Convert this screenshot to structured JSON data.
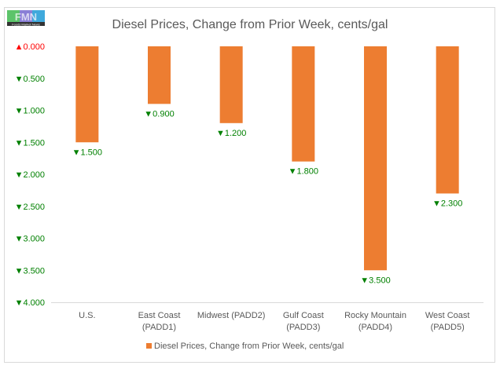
{
  "logo": {
    "text": "FMN",
    "subtext": "Foods Market News"
  },
  "chart_data": {
    "type": "bar",
    "title": "Diesel Prices, Change from Prior Week, cents/gal",
    "categories": [
      [
        "U.S."
      ],
      [
        "East Coast",
        "(PADD1)"
      ],
      [
        "Midwest (PADD2)"
      ],
      [
        "Gulf Coast",
        "(PADD3)"
      ],
      [
        "Rocky Mountain",
        "(PADD4)"
      ],
      [
        "West Coast",
        "(PADD5)"
      ]
    ],
    "values": [
      -1.5,
      -0.9,
      -1.2,
      -1.8,
      -3.5,
      -2.3
    ],
    "data_labels": [
      "▼1.500",
      "▼0.900",
      "▼1.200",
      "▼1.800",
      "▼3.500",
      "▼2.300"
    ],
    "ylim": [
      -4,
      0
    ],
    "yticks": [
      0,
      -0.5,
      -1,
      -1.5,
      -2,
      -2.5,
      -3,
      -3.5,
      -4
    ],
    "ytick_labels": [
      "▲0.000",
      "▼0.500",
      "▼1.000",
      "▼1.500",
      "▼2.000",
      "▼2.500",
      "▼3.000",
      "▼3.500",
      "▼4.000"
    ],
    "legend": {
      "entries": [
        "Diesel Prices, Change from Prior Week, cents/gal"
      ],
      "position": "bottom"
    },
    "xlabel": "",
    "ylabel": "",
    "grid": false,
    "colors": {
      "bar": "#ED7D31",
      "down": "#008000",
      "up": "#FF0000",
      "axis": "#D9D9D9",
      "text": "#595959"
    }
  }
}
